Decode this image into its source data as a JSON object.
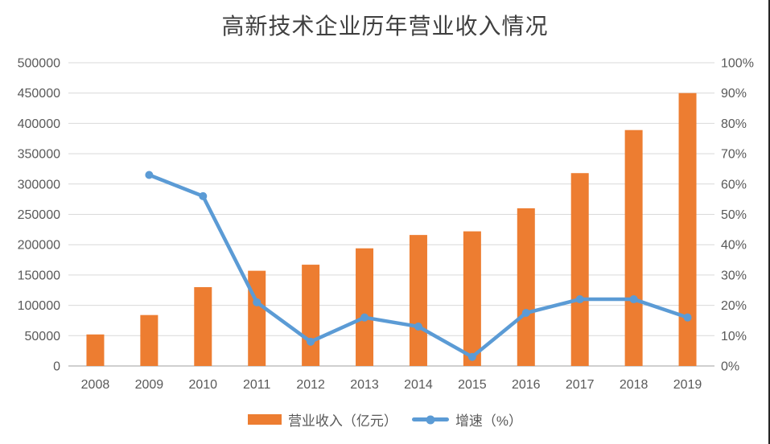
{
  "title": "高新技术企业历年营业收入情况",
  "colors": {
    "bar": "#ED7D31",
    "line": "#5B9BD5",
    "grid": "#D9D9D9",
    "axis_line": "#BFBFBF",
    "tick_text": "#595959",
    "title_text": "#404040",
    "edge_border": "#262626"
  },
  "legend": [
    {
      "label": "营业收入（亿元）",
      "marker": "bar-swatch"
    },
    {
      "label": "增速（%）",
      "marker": "line-with-dot-swatch"
    }
  ],
  "chart_data": {
    "type": "bar+line combo",
    "title": "高新技术企业历年营业收入情况",
    "categories": [
      "2008",
      "2009",
      "2010",
      "2011",
      "2012",
      "2013",
      "2014",
      "2015",
      "2016",
      "2017",
      "2018",
      "2019"
    ],
    "series": [
      {
        "name": "营业收入（亿元）",
        "type": "bar",
        "axis": "left",
        "color": "#ED7D31",
        "values": [
          52000,
          84000,
          130000,
          157000,
          167000,
          194000,
          216000,
          222000,
          260000,
          318000,
          389000,
          450000
        ]
      },
      {
        "name": "增速（%）",
        "type": "line",
        "axis": "right",
        "color": "#5B9BD5",
        "values": [
          null,
          63,
          56,
          21,
          8,
          16,
          13,
          3,
          17.5,
          22,
          22,
          16
        ]
      }
    ],
    "left_axis": {
      "min": 0,
      "max": 500000,
      "step": 50000,
      "tick_labels": [
        "0",
        "50000",
        "100000",
        "150000",
        "200000",
        "250000",
        "300000",
        "350000",
        "400000",
        "450000",
        "500000"
      ]
    },
    "right_axis": {
      "min": 0,
      "max": 100,
      "step": 10,
      "tick_labels": [
        "0%",
        "10%",
        "20%",
        "30%",
        "40%",
        "50%",
        "60%",
        "70%",
        "80%",
        "90%",
        "100%"
      ]
    },
    "grid": true,
    "legend_position": "bottom"
  }
}
